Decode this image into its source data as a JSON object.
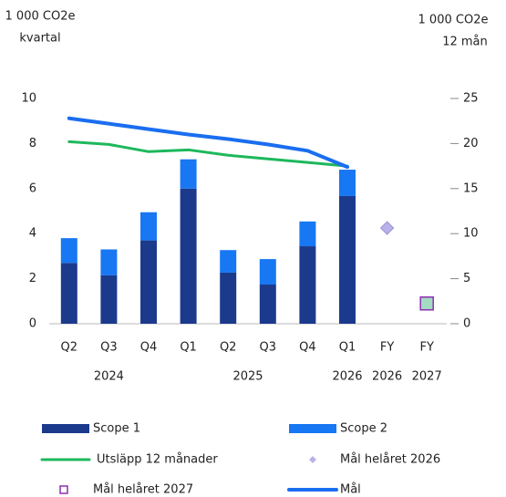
{
  "chart_data": {
    "type": "bar",
    "stacked": true,
    "ylabel": [
      "1 000 CO2e",
      "kvartal"
    ],
    "y2label": [
      "1 000 CO2e",
      "12 mån"
    ],
    "categories": [
      "Q2",
      "Q3",
      "Q4",
      "Q1",
      "Q2",
      "Q3",
      "Q4",
      "Q1",
      "FY",
      "FY"
    ],
    "category_groups": [
      {
        "label": "2024",
        "span": 3
      },
      {
        "label": "2025",
        "span": 4
      },
      {
        "label": "2026",
        "span": 1
      },
      {
        "label": "2026",
        "span": 1
      },
      {
        "label": "2027",
        "span": 1
      }
    ],
    "ylim": [
      0,
      10
    ],
    "yticks": [
      0,
      2,
      4,
      6,
      8,
      10
    ],
    "y2lim": [
      0,
      25
    ],
    "y2ticks": [
      0,
      5,
      10,
      15,
      20,
      25
    ],
    "series": [
      {
        "name": "Scope 1",
        "type": "bar",
        "color": "#1c3a8c",
        "values": [
          2.7,
          2.15,
          3.7,
          6.0,
          2.27,
          1.74,
          3.44,
          5.67,
          null,
          null
        ]
      },
      {
        "name": "Scope 2",
        "type": "bar",
        "color": "#1877f2",
        "values": [
          1.1,
          1.15,
          1.25,
          1.3,
          1.0,
          1.13,
          1.1,
          1.17,
          null,
          null
        ]
      },
      {
        "name": "Utsläpp 12 månader",
        "type": "line",
        "axis": "y2",
        "color": "#1db85c",
        "values": [
          20.2,
          19.9,
          19.1,
          19.3,
          18.7,
          18.3,
          17.9,
          17.5,
          null,
          null
        ]
      },
      {
        "name": "Mål helåret 2026",
        "type": "diamond",
        "color": "#b9b2ea",
        "values": [
          null,
          null,
          null,
          null,
          null,
          null,
          null,
          null,
          4.25,
          null
        ]
      },
      {
        "name": "Mål helåret 2027",
        "type": "square",
        "color": "#a3dcc3",
        "edge": "#8e2fb3",
        "values": [
          null,
          null,
          null,
          null,
          null,
          null,
          null,
          null,
          null,
          0.9
        ]
      },
      {
        "name": "Mål",
        "type": "line",
        "axis": "y2",
        "color": "#1a6ef0",
        "values": [
          22.8,
          22.2,
          21.6,
          21.0,
          20.5,
          19.9,
          19.2,
          17.4,
          null,
          null
        ]
      }
    ],
    "legend": "bottom"
  }
}
